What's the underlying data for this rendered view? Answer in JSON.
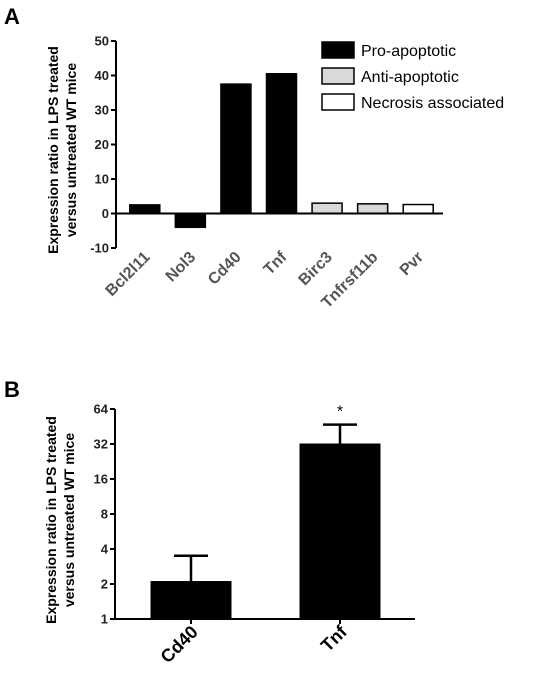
{
  "panels": {
    "a_letter": "A",
    "b_letter": "B"
  },
  "chart_data": [
    {
      "type": "bar",
      "panel": "A",
      "ylabel_line1": "Expression ratio in LPS treated",
      "ylabel_line2": "versus untreated WT mice",
      "ylim": [
        -10,
        50
      ],
      "yticks": [
        -10,
        0,
        10,
        20,
        30,
        40,
        50
      ],
      "categories": [
        "Bcl2l11",
        "Nol3",
        "Cd40",
        "Tnf",
        "Birc3",
        "Tnfrsf11b",
        "Pvr"
      ],
      "values": [
        2.5,
        -4,
        37.5,
        40.5,
        3,
        2.8,
        2.6
      ],
      "groups": [
        "pro",
        "pro",
        "pro",
        "pro",
        "anti",
        "anti",
        "necrosis"
      ],
      "legend": [
        {
          "key": "pro",
          "label": "Pro-apoptotic",
          "color": "#000000"
        },
        {
          "key": "anti",
          "label": "Anti-apoptotic",
          "color": "#d9d9d9"
        },
        {
          "key": "necrosis",
          "label": "Necrosis associated",
          "color": "#ffffff"
        }
      ],
      "legend_position": "top-right"
    },
    {
      "type": "bar",
      "panel": "B",
      "ylabel_line1": "Expression ratio in LPS treated",
      "ylabel_line2": "versus untreated WT mice",
      "yscale": "log2",
      "ylim": [
        1,
        64
      ],
      "yticks": [
        1,
        2,
        4,
        8,
        16,
        32,
        64
      ],
      "categories": [
        "Cd40",
        "Tnf"
      ],
      "values": [
        2.1,
        32
      ],
      "error_upper": [
        3.5,
        47
      ],
      "annotations": [
        "",
        "*"
      ],
      "bar_color": "#000000"
    }
  ]
}
